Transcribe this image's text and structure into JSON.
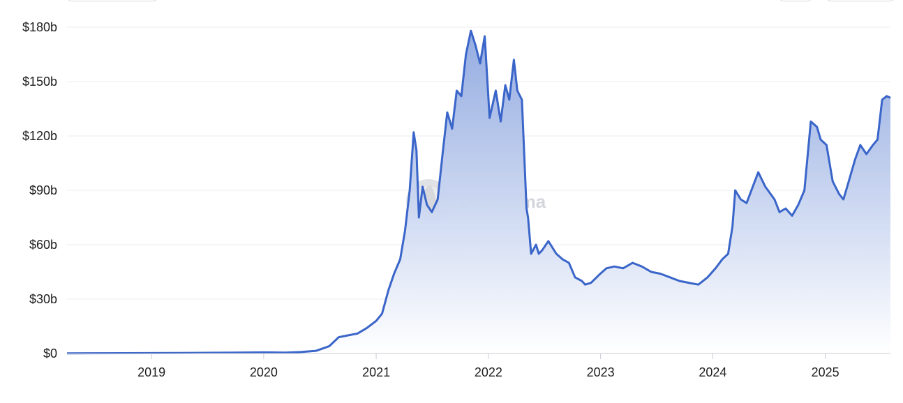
{
  "chart_data": {
    "type": "area",
    "title": "",
    "xlabel": "",
    "ylabel": "",
    "y_unit": "billion USD",
    "ylim": [
      0,
      180
    ],
    "xlim": [
      "2018-04-01",
      "2025-08-01"
    ],
    "y_ticks": [
      0,
      30,
      60,
      90,
      120,
      150,
      180
    ],
    "y_tick_labels": [
      "$0",
      "$30b",
      "$60b",
      "$90b",
      "$120b",
      "$150b",
      "$180b"
    ],
    "x_tick_labels": [
      "2019",
      "2020",
      "2021",
      "2022",
      "2023",
      "2024",
      "2025"
    ],
    "grid": "horizontal",
    "line_color": "#3a65c9",
    "fill_color_top": "#8fa8e0",
    "fill_color_bottom": "#ffffff",
    "watermark": "DefiLlama",
    "series": [
      {
        "x": [
          "2018-04-01",
          "2018-10-01",
          "2019-04-01",
          "2019-10-01",
          "2020-01-01",
          "2020-03-12",
          "2020-05-01",
          "2020-06-20",
          "2020-08-01",
          "2020-09-01",
          "2020-10-01",
          "2020-11-01",
          "2020-12-01",
          "2021-01-01",
          "2021-01-20",
          "2021-02-10",
          "2021-02-28",
          "2021-03-20",
          "2021-04-05",
          "2021-04-20",
          "2021-05-03",
          "2021-05-12",
          "2021-05-20",
          "2021-06-01",
          "2021-06-15",
          "2021-07-01",
          "2021-07-20",
          "2021-08-05",
          "2021-08-20",
          "2021-09-05",
          "2021-09-20",
          "2021-10-05",
          "2021-10-20",
          "2021-11-05",
          "2021-11-20",
          "2021-12-05",
          "2021-12-20",
          "2022-01-05",
          "2022-01-25",
          "2022-02-10",
          "2022-02-25",
          "2022-03-10",
          "2022-03-25",
          "2022-04-05",
          "2022-04-20",
          "2022-05-05",
          "2022-05-10",
          "2022-05-20",
          "2022-06-05",
          "2022-06-14",
          "2022-06-25",
          "2022-07-15",
          "2022-08-10",
          "2022-08-30",
          "2022-09-20",
          "2022-10-10",
          "2022-11-01",
          "2022-11-12",
          "2022-12-01",
          "2022-12-31",
          "2023-01-20",
          "2023-02-15",
          "2023-03-15",
          "2023-04-15",
          "2023-05-15",
          "2023-06-15",
          "2023-07-15",
          "2023-08-15",
          "2023-09-15",
          "2023-10-15",
          "2023-11-15",
          "2023-12-15",
          "2024-01-10",
          "2024-02-01",
          "2024-02-20",
          "2024-03-05",
          "2024-03-14",
          "2024-04-01",
          "2024-04-20",
          "2024-05-10",
          "2024-05-28",
          "2024-06-20",
          "2024-07-20",
          "2024-08-05",
          "2024-08-25",
          "2024-09-15",
          "2024-10-05",
          "2024-10-25",
          "2024-11-15",
          "2024-12-05",
          "2024-12-17",
          "2025-01-05",
          "2025-01-25",
          "2025-02-15",
          "2025-03-01",
          "2025-03-15",
          "2025-04-08",
          "2025-04-25",
          "2025-05-15",
          "2025-06-05",
          "2025-06-20",
          "2025-07-05",
          "2025-07-20",
          "2025-08-01"
        ],
        "values": [
          0.1,
          0.2,
          0.3,
          0.5,
          0.6,
          0.5,
          0.8,
          1.5,
          4,
          9,
          10,
          11,
          14,
          18,
          22,
          35,
          44,
          52,
          68,
          90,
          122,
          112,
          75,
          92,
          82,
          78,
          85,
          110,
          133,
          124,
          145,
          142,
          165,
          178,
          170,
          160,
          175,
          130,
          145,
          128,
          148,
          140,
          162,
          145,
          140,
          80,
          75,
          55,
          60,
          55,
          57,
          62,
          55,
          52,
          50,
          42,
          40,
          38,
          39,
          44,
          47,
          48,
          47,
          50,
          48,
          45,
          44,
          42,
          40,
          39,
          38,
          42,
          47,
          52,
          55,
          70,
          90,
          85,
          83,
          92,
          100,
          92,
          85,
          78,
          80,
          76,
          82,
          90,
          128,
          125,
          118,
          115,
          95,
          88,
          85,
          93,
          107,
          115,
          110,
          115,
          118,
          140,
          142,
          141
        ]
      }
    ]
  }
}
